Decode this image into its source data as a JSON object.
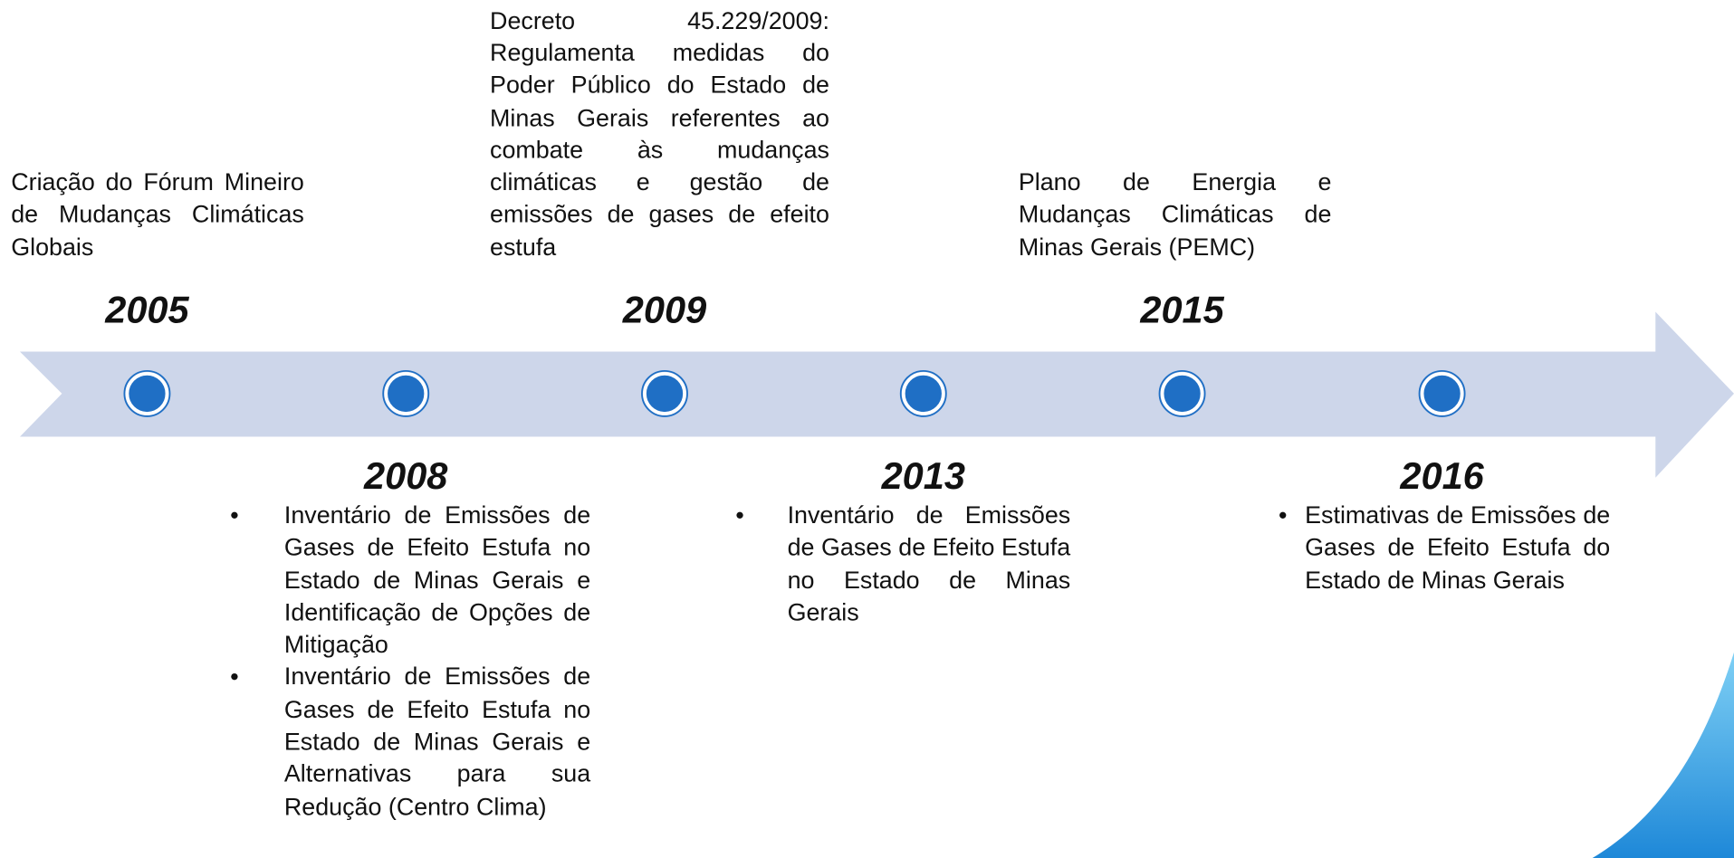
{
  "timeline": {
    "top": [
      {
        "year": "2005",
        "text": "Criação do Fórum Mineiro de Mudanças Climáticas Globais"
      },
      {
        "year": "2009",
        "text": "Decreto 45.229/2009: Regulamenta medidas do Poder Público do Estado de Minas Gerais referentes ao combate às mudanças climáticas e gestão de emissões de gases de efeito estufa"
      },
      {
        "year": "2015",
        "text": "Plano de Energia e Mudanças Climáticas de Minas Gerais (PEMC)"
      }
    ],
    "bottom": [
      {
        "year": "2008",
        "items": [
          "Inventário de Emissões de Gases de Efeito Estufa no Estado de Minas Gerais e Identificação de Opções de Mitigação",
          "Inventário de Emissões de Gases de Efeito Estufa no Estado de Minas Gerais e Alternativas para sua Redução (Centro Clima)"
        ]
      },
      {
        "year": "2013",
        "items": [
          "Inventário de Emissões de Gases de Efeito Estufa no Estado de Minas Gerais"
        ]
      },
      {
        "year": "2016",
        "items": [
          "Estimativas de Emissões de Gases de Efeito Estufa do Estado de Minas Gerais"
        ]
      }
    ]
  }
}
